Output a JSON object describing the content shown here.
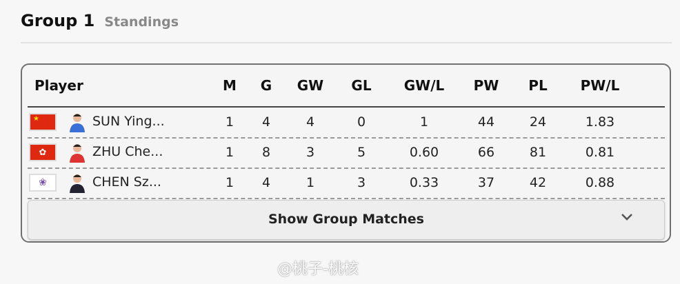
{
  "header": {
    "title": "Group 1",
    "subtitle": "Standings"
  },
  "table": {
    "columns": [
      "Player",
      "M",
      "G",
      "GW",
      "GL",
      "GW/L",
      "PW",
      "PL",
      "PW/L"
    ],
    "rows": [
      {
        "flag": "china-flag",
        "flag_color": "#de2910",
        "player": "SUN Ying...",
        "values": [
          "1",
          "4",
          "4",
          "0",
          "1",
          "44",
          "24",
          "1.83"
        ]
      },
      {
        "flag": "hong-kong-flag",
        "flag_color": "#de2910",
        "player": "ZHU Che...",
        "values": [
          "1",
          "8",
          "3",
          "5",
          "0.60",
          "66",
          "81",
          "0.81"
        ]
      },
      {
        "flag": "chinese-taipei-flag",
        "flag_color": "#ffffff",
        "player": "CHEN Sz...",
        "values": [
          "1",
          "4",
          "1",
          "3",
          "0.33",
          "37",
          "42",
          "0.88"
        ]
      }
    ]
  },
  "show_matches": {
    "label": "Show Group Matches",
    "icon": "chevron-down-icon"
  },
  "watermark": "@桃子-桃核"
}
